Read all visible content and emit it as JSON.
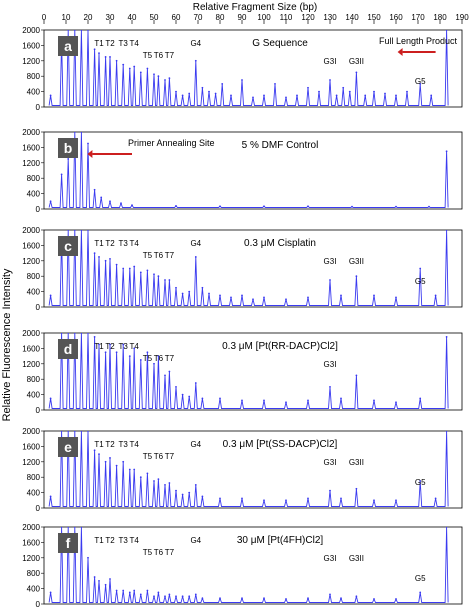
{
  "figure": {
    "top_title": "Relative Fragment Size (bp)",
    "y_axis_label": "Relative Fluorescence Intensity",
    "top_ticks": [
      0,
      10,
      20,
      30,
      40,
      50,
      60,
      70,
      80,
      90,
      100,
      110,
      120,
      130,
      140,
      150,
      160,
      170,
      180,
      190
    ]
  },
  "colors": {
    "trace": "#3a3af0",
    "arrow": "#cc1f1f",
    "frame": "#000000",
    "badge": "#555555"
  },
  "chart_data": [
    {
      "type": "line",
      "panel": "a",
      "title": "G Sequence",
      "ylim": [
        0,
        2000
      ],
      "xlim": [
        0,
        190
      ],
      "ytick_labels": [
        "2000",
        "1600",
        "1200",
        "800",
        "400",
        "0"
      ],
      "peak_labels": [
        {
          "text": "T1",
          "x": 25
        },
        {
          "text": "T2",
          "x": 30
        },
        {
          "text": "T3",
          "x": 36
        },
        {
          "text": "T4",
          "x": 41
        },
        {
          "text": "T5",
          "x": 47
        },
        {
          "text": "T6",
          "x": 52
        },
        {
          "text": "T7",
          "x": 57
        },
        {
          "text": "G4",
          "x": 69
        },
        {
          "text": "G3I",
          "x": 130
        },
        {
          "text": "G3II",
          "x": 142
        },
        {
          "text": "G5",
          "x": 171
        }
      ],
      "annotation": {
        "text": "Full Length Product",
        "arrow_from_x": 178,
        "arrow_to_x": 163
      },
      "series": [
        {
          "x": [
            3,
            8,
            11,
            14,
            17,
            20,
            23,
            25,
            28,
            30,
            33,
            36,
            39,
            41,
            44,
            47,
            50,
            52,
            55,
            57,
            60,
            63,
            66,
            69,
            72,
            75,
            78,
            81,
            85,
            90,
            95,
            100,
            105,
            110,
            115,
            120,
            125,
            130,
            133,
            136,
            139,
            142,
            146,
            150,
            155,
            160,
            165,
            171,
            176,
            183
          ],
          "y": [
            300,
            1700,
            2000,
            2000,
            2000,
            2000,
            1500,
            1400,
            1300,
            1300,
            1200,
            1100,
            1000,
            1050,
            900,
            1000,
            850,
            800,
            700,
            750,
            400,
            300,
            350,
            1200,
            500,
            400,
            350,
            600,
            300,
            700,
            250,
            300,
            600,
            250,
            300,
            500,
            400,
            700,
            300,
            500,
            400,
            900,
            300,
            400,
            350,
            300,
            400,
            600,
            300,
            2000
          ]
        }
      ]
    },
    {
      "type": "line",
      "panel": "b",
      "title": "5 % DMF Control",
      "ylim": [
        0,
        2000
      ],
      "xlim": [
        0,
        190
      ],
      "ytick_labels": [
        "2000",
        "1600",
        "1200",
        "800",
        "400",
        "0"
      ],
      "peak_labels": [],
      "annotation": {
        "text": "Primer Annealing Site",
        "arrow_from_x": 40,
        "arrow_to_x": 22
      },
      "series": [
        {
          "x": [
            3,
            8,
            11,
            14,
            17,
            20,
            23,
            26,
            30,
            35,
            40,
            60,
            80,
            100,
            120,
            140,
            160,
            175,
            183
          ],
          "y": [
            200,
            900,
            1300,
            2000,
            2000,
            1700,
            500,
            300,
            200,
            150,
            100,
            80,
            70,
            70,
            70,
            60,
            60,
            60,
            1500
          ]
        }
      ]
    },
    {
      "type": "line",
      "panel": "c",
      "title": "0.3 μM Cisplatin",
      "ylim": [
        0,
        2000
      ],
      "xlim": [
        0,
        190
      ],
      "ytick_labels": [
        "2000",
        "1600",
        "1200",
        "800",
        "400",
        "0"
      ],
      "peak_labels": [
        {
          "text": "T1",
          "x": 25
        },
        {
          "text": "T2",
          "x": 30
        },
        {
          "text": "T3",
          "x": 36
        },
        {
          "text": "T4",
          "x": 41
        },
        {
          "text": "T5",
          "x": 47
        },
        {
          "text": "T6",
          "x": 52
        },
        {
          "text": "T7",
          "x": 57
        },
        {
          "text": "G4",
          "x": 69
        },
        {
          "text": "G3I",
          "x": 130
        },
        {
          "text": "G3II",
          "x": 142
        },
        {
          "text": "G5",
          "x": 171
        }
      ],
      "series": [
        {
          "x": [
            3,
            8,
            11,
            14,
            17,
            20,
            23,
            25,
            28,
            30,
            33,
            36,
            39,
            41,
            44,
            47,
            50,
            52,
            55,
            57,
            60,
            63,
            66,
            69,
            72,
            75,
            80,
            85,
            90,
            95,
            100,
            110,
            120,
            130,
            135,
            142,
            150,
            160,
            171,
            178,
            183
          ],
          "y": [
            300,
            1800,
            2000,
            2000,
            2000,
            2000,
            1400,
            1300,
            1200,
            1250,
            1100,
            1000,
            1000,
            1050,
            900,
            950,
            850,
            800,
            700,
            700,
            500,
            350,
            400,
            1300,
            500,
            350,
            300,
            250,
            300,
            200,
            250,
            200,
            250,
            700,
            300,
            800,
            300,
            250,
            1000,
            300,
            2000
          ]
        }
      ]
    },
    {
      "type": "line",
      "panel": "d",
      "title": "0.3 μM [Pt(RR-DACP)Cl2]",
      "ylim": [
        0,
        2000
      ],
      "xlim": [
        0,
        190
      ],
      "ytick_labels": [
        "2000",
        "1600",
        "1200",
        "800",
        "400",
        "0"
      ],
      "peak_labels": [
        {
          "text": "T1",
          "x": 25
        },
        {
          "text": "T2",
          "x": 30
        },
        {
          "text": "T3",
          "x": 36
        },
        {
          "text": "T4",
          "x": 41
        },
        {
          "text": "T5",
          "x": 47
        },
        {
          "text": "T6",
          "x": 52
        },
        {
          "text": "T7",
          "x": 57
        },
        {
          "text": "G3I",
          "x": 130
        }
      ],
      "series": [
        {
          "x": [
            3,
            8,
            11,
            14,
            17,
            20,
            23,
            25,
            28,
            30,
            33,
            36,
            39,
            41,
            44,
            47,
            50,
            52,
            55,
            57,
            60,
            63,
            66,
            69,
            72,
            80,
            90,
            100,
            110,
            120,
            130,
            135,
            142,
            150,
            160,
            171,
            183
          ],
          "y": [
            300,
            2000,
            2000,
            2000,
            2000,
            2000,
            1900,
            1700,
            1500,
            1700,
            1500,
            1700,
            1400,
            1600,
            1300,
            1500,
            1200,
            1400,
            900,
            1000,
            600,
            400,
            350,
            700,
            300,
            300,
            250,
            250,
            200,
            250,
            600,
            300,
            900,
            250,
            200,
            300,
            1900
          ]
        }
      ]
    },
    {
      "type": "line",
      "panel": "e",
      "title": "0.3 μM [Pt(SS-DACP)Cl2]",
      "ylim": [
        0,
        2000
      ],
      "xlim": [
        0,
        190
      ],
      "ytick_labels": [
        "2000",
        "1600",
        "1200",
        "800",
        "400",
        "0"
      ],
      "peak_labels": [
        {
          "text": "T1",
          "x": 25
        },
        {
          "text": "T2",
          "x": 30
        },
        {
          "text": "T3",
          "x": 36
        },
        {
          "text": "T4",
          "x": 41
        },
        {
          "text": "T5",
          "x": 47
        },
        {
          "text": "T6",
          "x": 52
        },
        {
          "text": "T7",
          "x": 57
        },
        {
          "text": "G4",
          "x": 69
        },
        {
          "text": "G3I",
          "x": 130
        },
        {
          "text": "G3II",
          "x": 142
        },
        {
          "text": "G5",
          "x": 171
        }
      ],
      "series": [
        {
          "x": [
            3,
            8,
            11,
            14,
            17,
            20,
            23,
            25,
            28,
            30,
            33,
            36,
            39,
            41,
            44,
            47,
            50,
            52,
            55,
            57,
            60,
            63,
            66,
            69,
            72,
            80,
            90,
            100,
            110,
            120,
            130,
            135,
            142,
            150,
            160,
            171,
            178,
            183
          ],
          "y": [
            300,
            2000,
            2000,
            2000,
            2000,
            2000,
            1500,
            1400,
            1200,
            1300,
            1100,
            1200,
            1000,
            1000,
            800,
            900,
            700,
            750,
            600,
            650,
            450,
            350,
            400,
            600,
            300,
            250,
            250,
            200,
            200,
            250,
            450,
            250,
            500,
            200,
            200,
            700,
            250,
            2000
          ]
        }
      ]
    },
    {
      "type": "line",
      "panel": "f",
      "title": "30 μM [Pt(4FH)Cl2]",
      "ylim": [
        0,
        2000
      ],
      "xlim": [
        0,
        190
      ],
      "ytick_labels": [
        "2000",
        "1600",
        "1200",
        "800",
        "400",
        "0"
      ],
      "peak_labels": [
        {
          "text": "T1",
          "x": 25
        },
        {
          "text": "T2",
          "x": 30
        },
        {
          "text": "T3",
          "x": 36
        },
        {
          "text": "T4",
          "x": 41
        },
        {
          "text": "T5",
          "x": 47
        },
        {
          "text": "T6",
          "x": 52
        },
        {
          "text": "T7",
          "x": 57
        },
        {
          "text": "G4",
          "x": 69
        },
        {
          "text": "G3I",
          "x": 130
        },
        {
          "text": "G3II",
          "x": 142
        },
        {
          "text": "G5",
          "x": 171
        }
      ],
      "series": [
        {
          "x": [
            3,
            8,
            11,
            14,
            17,
            20,
            23,
            25,
            28,
            30,
            33,
            36,
            39,
            41,
            44,
            47,
            50,
            52,
            55,
            57,
            60,
            63,
            66,
            69,
            72,
            80,
            90,
            100,
            110,
            120,
            130,
            135,
            142,
            150,
            160,
            171,
            183
          ],
          "y": [
            300,
            2000,
            2000,
            2000,
            2000,
            1200,
            700,
            600,
            500,
            650,
            350,
            350,
            300,
            350,
            250,
            350,
            200,
            300,
            200,
            250,
            200,
            200,
            200,
            250,
            150,
            150,
            150,
            150,
            130,
            150,
            250,
            150,
            200,
            130,
            130,
            300,
            2000
          ]
        }
      ]
    }
  ]
}
